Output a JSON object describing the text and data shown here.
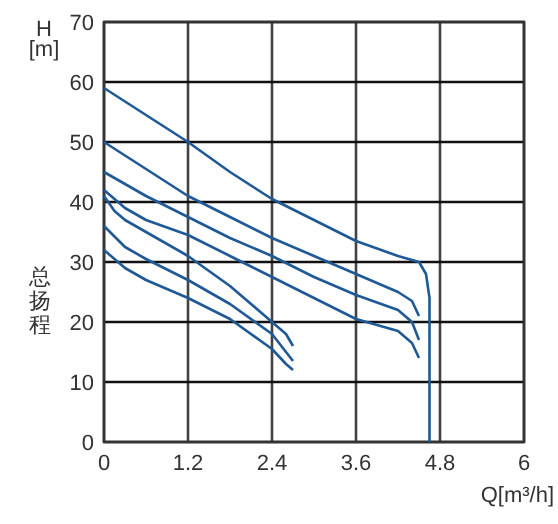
{
  "chart_data": {
    "type": "line",
    "xlabel": "Q[m³/h]",
    "ylabel": "H [m]",
    "annotations": [
      "总扬程"
    ],
    "xlim": [
      0,
      6
    ],
    "ylim": [
      0,
      70
    ],
    "xticks": [
      0,
      1.2,
      2.4,
      3.6,
      4.8,
      6
    ],
    "yticks": [
      0,
      10,
      20,
      30,
      40,
      50,
      60,
      70
    ],
    "grid": true,
    "line_style": "solid",
    "series": [
      {
        "color": "#1f5a96",
        "x": [
          0,
          0.6,
          1.2,
          1.8,
          2.4,
          3.0,
          3.6,
          4.2,
          4.5,
          4.6,
          4.65,
          4.65
        ],
        "values": [
          59,
          54.5,
          50,
          45,
          40.5,
          37,
          33.5,
          31,
          30,
          28,
          24,
          0
        ]
      },
      {
        "color": "#1f5a96",
        "x": [
          0,
          0.6,
          1.2,
          1.8,
          2.4,
          3.0,
          3.6,
          4.2,
          4.4,
          4.5
        ],
        "values": [
          50,
          45.5,
          41,
          37.5,
          34,
          31,
          28,
          25,
          23.5,
          21
        ]
      },
      {
        "color": "#1f5a96",
        "x": [
          0,
          0.6,
          1.2,
          1.8,
          2.4,
          3.0,
          3.6,
          4.2,
          4.4,
          4.5
        ],
        "values": [
          45,
          41,
          37.5,
          34,
          31,
          27.5,
          24.5,
          22,
          20,
          17
        ]
      },
      {
        "color": "#1f5a96",
        "x": [
          0,
          0.3,
          0.6,
          1.2,
          1.8,
          2.4,
          3.0,
          3.6,
          4.2,
          4.4,
          4.5
        ],
        "values": [
          42,
          39,
          37,
          34.5,
          31,
          27.5,
          24,
          20.5,
          18.5,
          16.5,
          14
        ]
      },
      {
        "color": "#1f5a96",
        "x": [
          0,
          0.15,
          0.3,
          0.6,
          1.2,
          1.8,
          2.4,
          2.6,
          2.7
        ],
        "values": [
          41,
          38.5,
          37,
          35,
          31,
          26,
          20,
          18,
          16
        ]
      },
      {
        "color": "#1f5a96",
        "x": [
          0,
          0.3,
          0.6,
          1.2,
          1.8,
          2.4,
          2.6,
          2.7
        ],
        "values": [
          36,
          32.5,
          30.5,
          27,
          23,
          18,
          15,
          13.5
        ]
      },
      {
        "color": "#1f5a96",
        "x": [
          0,
          0.3,
          0.6,
          1.2,
          1.8,
          2.4,
          2.6,
          2.7
        ],
        "values": [
          32,
          29,
          27,
          24,
          20.5,
          15.5,
          13,
          12
        ]
      }
    ]
  }
}
